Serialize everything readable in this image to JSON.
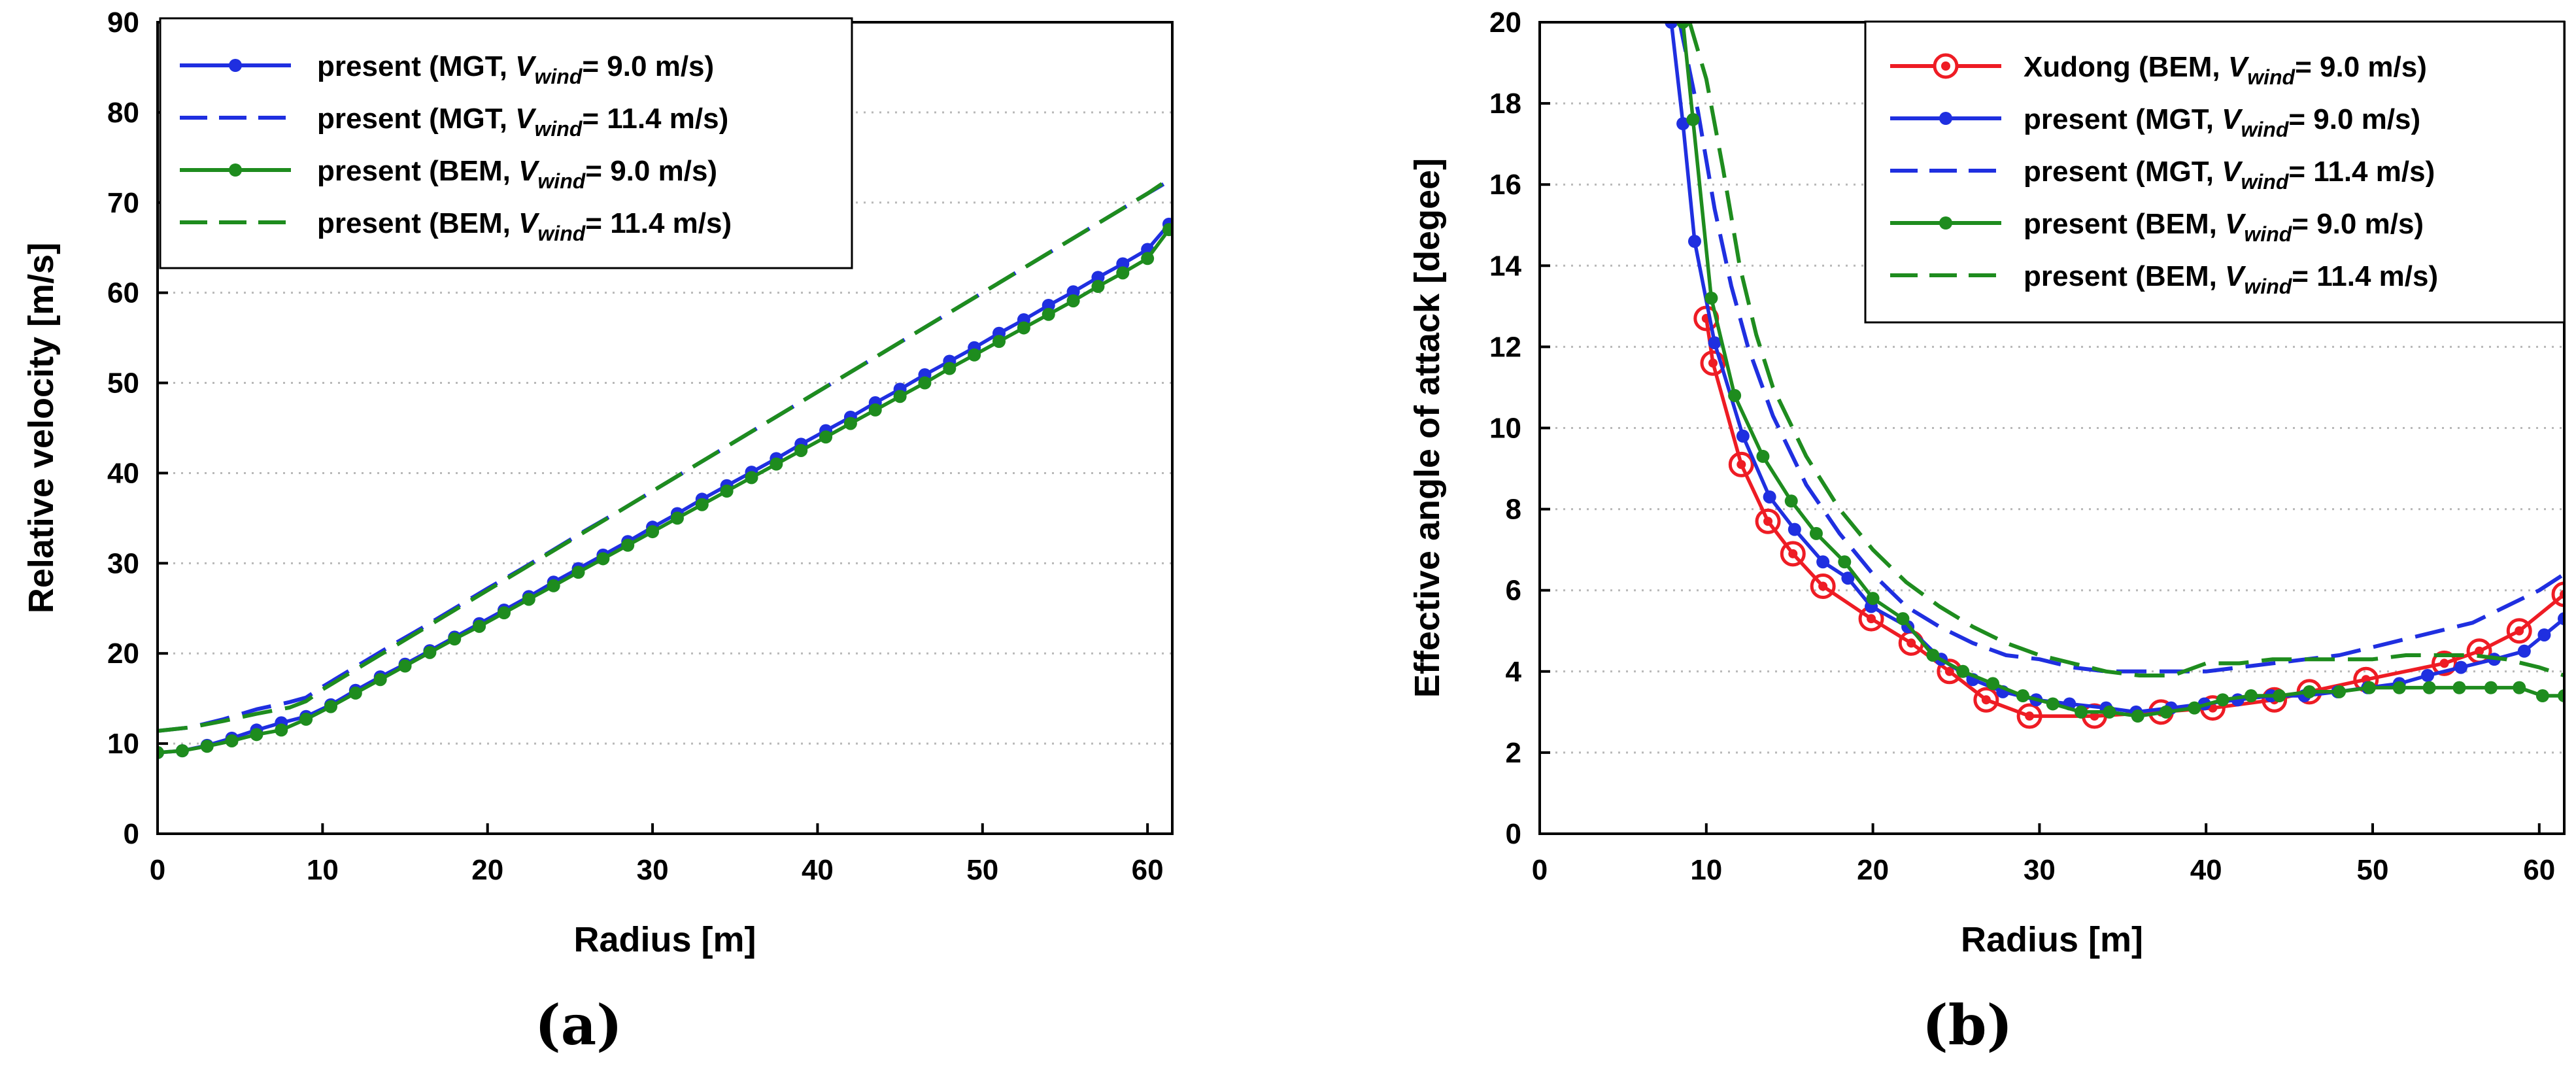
{
  "figure": {
    "colors": {
      "red": "#ee1c24",
      "blue": "#1f2fe0",
      "green": "#1e8c1e",
      "grid": "#b8b8b8"
    }
  },
  "chart_data": [
    {
      "id": "a",
      "panel_label": "(a)",
      "type": "line",
      "title": "",
      "xlabel": "Radius [m]",
      "ylabel": "Relative velocity [m/s]",
      "xlim": [
        0,
        61.5
      ],
      "ylim": [
        0,
        90
      ],
      "xticks": [
        0,
        10,
        20,
        30,
        40,
        50,
        60
      ],
      "yticks": [
        0,
        10,
        20,
        30,
        40,
        50,
        60,
        70,
        80,
        90
      ],
      "grid": "horizontal dotted",
      "legend_position": "top-left",
      "series": [
        {
          "name_pre": "present (MGT, ",
          "name_var": "V",
          "name_sub": "wind",
          "name_post": "= 9.0 m/s)",
          "color": "#1f2fe0",
          "style": "solid",
          "marker": "dot",
          "x": [
            0,
            1.5,
            3.0,
            4.5,
            6.0,
            7.5,
            9.0,
            10.5,
            12.0,
            13.5,
            15.0,
            16.5,
            18.0,
            19.5,
            21.0,
            22.5,
            24.0,
            25.5,
            27.0,
            28.5,
            30.0,
            31.5,
            33.0,
            34.5,
            36.0,
            37.5,
            39.0,
            40.5,
            42.0,
            43.5,
            45.0,
            46.5,
            48.0,
            49.5,
            51.0,
            52.5,
            54.0,
            55.5,
            57.0,
            58.5,
            60.0,
            61.3
          ],
          "y": [
            9.0,
            9.2,
            9.8,
            10.6,
            11.5,
            12.3,
            13.0,
            14.3,
            15.9,
            17.4,
            18.8,
            20.3,
            21.8,
            23.3,
            24.8,
            26.3,
            27.9,
            29.4,
            30.9,
            32.4,
            34.0,
            35.5,
            37.1,
            38.6,
            40.1,
            41.6,
            43.2,
            44.7,
            46.2,
            47.8,
            49.3,
            50.9,
            52.4,
            53.9,
            55.5,
            57.0,
            58.6,
            60.1,
            61.7,
            63.2,
            64.8,
            67.6
          ]
        },
        {
          "name_pre": "present (MGT, ",
          "name_var": "V",
          "name_sub": "wind",
          "name_post": "= 11.4 m/s)",
          "color": "#1f2fe0",
          "style": "dashed",
          "marker": "none",
          "x": [
            0,
            2,
            4,
            6,
            8,
            9,
            10,
            12,
            14,
            16,
            18,
            20,
            22,
            24,
            26,
            28,
            30,
            32,
            34,
            36,
            38,
            40,
            42,
            44,
            46,
            48,
            50,
            52,
            54,
            56,
            58,
            60,
            61.3
          ],
          "y": [
            11.4,
            11.8,
            12.7,
            13.8,
            14.6,
            15.1,
            16.3,
            18.5,
            20.7,
            22.8,
            25.0,
            27.2,
            29.3,
            31.5,
            33.7,
            35.8,
            38.0,
            40.2,
            42.4,
            44.6,
            46.8,
            49.0,
            51.2,
            53.4,
            55.6,
            57.8,
            60.0,
            62.2,
            64.4,
            66.6,
            68.8,
            71.0,
            72.4
          ]
        },
        {
          "name_pre": "present (BEM, ",
          "name_var": "V",
          "name_sub": "wind",
          "name_post": "= 9.0 m/s)",
          "color": "#1e8c1e",
          "style": "solid",
          "marker": "dot",
          "x": [
            0,
            1.5,
            3.0,
            4.5,
            6.0,
            7.5,
            9.0,
            10.5,
            12.0,
            13.5,
            15.0,
            16.5,
            18.0,
            19.5,
            21.0,
            22.5,
            24.0,
            25.5,
            27.0,
            28.5,
            30.0,
            31.5,
            33.0,
            34.5,
            36.0,
            37.5,
            39.0,
            40.5,
            42.0,
            43.5,
            45.0,
            46.5,
            48.0,
            49.5,
            51.0,
            52.5,
            54.0,
            55.5,
            57.0,
            58.5,
            60.0,
            61.3
          ],
          "y": [
            9.0,
            9.2,
            9.7,
            10.3,
            11.0,
            11.5,
            12.7,
            14.1,
            15.6,
            17.1,
            18.6,
            20.1,
            21.6,
            23.0,
            24.5,
            26.0,
            27.5,
            29.0,
            30.5,
            32.0,
            33.5,
            35.0,
            36.5,
            38.0,
            39.5,
            41.0,
            42.5,
            44.0,
            45.5,
            47.0,
            48.5,
            50.0,
            51.6,
            53.1,
            54.6,
            56.1,
            57.6,
            59.1,
            60.7,
            62.2,
            63.8,
            67.0
          ]
        },
        {
          "name_pre": "present (BEM, ",
          "name_var": "V",
          "name_sub": "wind",
          "name_post": "= 11.4 m/s)",
          "color": "#1e8c1e",
          "style": "dashed",
          "marker": "none",
          "x": [
            0,
            2,
            4,
            6,
            8,
            9,
            10,
            12,
            14,
            16,
            18,
            20,
            22,
            24,
            26,
            28,
            30,
            32,
            34,
            36,
            38,
            40,
            42,
            44,
            46,
            48,
            50,
            52,
            54,
            56,
            58,
            60,
            61.3
          ],
          "y": [
            11.4,
            11.8,
            12.5,
            13.3,
            14.0,
            14.7,
            16.0,
            18.2,
            20.4,
            22.6,
            24.8,
            27.0,
            29.2,
            31.4,
            33.6,
            35.8,
            38.0,
            40.2,
            42.4,
            44.6,
            46.8,
            49.0,
            51.2,
            53.4,
            55.6,
            57.8,
            60.0,
            62.2,
            64.4,
            66.6,
            68.8,
            71.0,
            72.6
          ]
        }
      ]
    },
    {
      "id": "b",
      "panel_label": "(b)",
      "type": "line",
      "title": "",
      "xlabel": "Radius [m]",
      "ylabel": "Effective angle of attack [degee]",
      "xlim": [
        0,
        61.5
      ],
      "ylim": [
        0,
        20
      ],
      "xticks": [
        0,
        10,
        20,
        30,
        40,
        50,
        60
      ],
      "yticks": [
        0,
        2,
        4,
        6,
        8,
        10,
        12,
        14,
        16,
        18,
        20
      ],
      "grid": "horizontal dotted",
      "legend_position": "top-right",
      "series": [
        {
          "name_pre": "Xudong (BEM, ",
          "name_var": "V",
          "name_sub": "wind",
          "name_post": "= 9.0 m/s)",
          "color": "#ee1c24",
          "style": "solid",
          "marker": "ring",
          "x": [
            10.0,
            10.4,
            12.1,
            13.7,
            15.2,
            17.0,
            19.9,
            22.3,
            24.6,
            26.8,
            29.4,
            33.3,
            37.3,
            40.4,
            44.1,
            46.2,
            49.6,
            54.3,
            56.4,
            58.8,
            61.5
          ],
          "y": [
            12.7,
            11.6,
            9.1,
            7.7,
            6.9,
            6.1,
            5.3,
            4.7,
            4.0,
            3.3,
            2.9,
            2.9,
            3.0,
            3.1,
            3.3,
            3.5,
            3.8,
            4.2,
            4.5,
            5.0,
            5.9
          ]
        },
        {
          "name_pre": "present (MGT, ",
          "name_var": "V",
          "name_sub": "wind",
          "name_post": "= 9.0 m/s)",
          "color": "#1f2fe0",
          "style": "solid",
          "marker": "dot",
          "x": [
            7.9,
            8.6,
            9.3,
            10.5,
            12.2,
            13.8,
            15.3,
            17.0,
            18.5,
            19.9,
            22.1,
            24.1,
            26.0,
            27.8,
            29.8,
            31.8,
            34.0,
            35.8,
            37.9,
            39.9,
            41.9,
            43.9,
            45.9,
            47.9,
            49.7,
            51.6,
            53.3,
            55.3,
            57.3,
            59.1,
            60.3,
            61.5
          ],
          "y": [
            20.0,
            17.5,
            14.6,
            12.1,
            9.8,
            8.3,
            7.5,
            6.7,
            6.3,
            5.6,
            5.1,
            4.3,
            3.8,
            3.5,
            3.3,
            3.2,
            3.1,
            3.0,
            3.1,
            3.2,
            3.3,
            3.4,
            3.4,
            3.5,
            3.6,
            3.7,
            3.9,
            4.1,
            4.3,
            4.5,
            4.9,
            5.3
          ]
        },
        {
          "name_pre": "present (MGT, ",
          "name_var": "V",
          "name_sub": "wind",
          "name_post": "= 11.4 m/s)",
          "color": "#1f2fe0",
          "style": "dashed",
          "marker": "none",
          "x": [
            8.4,
            9.5,
            10.5,
            11.5,
            12.5,
            14,
            16,
            18,
            20,
            22,
            24,
            26,
            28,
            30,
            32,
            34,
            36,
            38,
            40,
            42,
            44,
            46,
            48,
            50,
            52,
            54,
            56,
            58,
            60,
            61.5
          ],
          "y": [
            20.0,
            17.8,
            15.4,
            13.5,
            12.0,
            10.3,
            8.6,
            7.4,
            6.4,
            5.6,
            5.1,
            4.7,
            4.4,
            4.3,
            4.1,
            4.0,
            4.0,
            4.0,
            4.0,
            4.1,
            4.2,
            4.3,
            4.4,
            4.6,
            4.8,
            5.0,
            5.2,
            5.6,
            6.0,
            6.4
          ]
        },
        {
          "name_pre": "present (BEM, ",
          "name_var": "V",
          "name_sub": "wind",
          "name_post": "= 9.0 m/s)",
          "color": "#1e8c1e",
          "style": "solid",
          "marker": "dot",
          "x": [
            8.6,
            9.2,
            10.3,
            11.7,
            13.4,
            15.1,
            16.6,
            18.3,
            20.0,
            21.8,
            23.6,
            25.4,
            27.2,
            29.0,
            30.8,
            32.5,
            34.2,
            35.9,
            37.6,
            39.3,
            41.0,
            42.7,
            44.4,
            46.2,
            48.0,
            49.8,
            51.6,
            53.4,
            55.2,
            57.1,
            58.8,
            60.2,
            61.5
          ],
          "y": [
            20.0,
            17.6,
            13.2,
            10.8,
            9.3,
            8.2,
            7.4,
            6.7,
            5.8,
            5.3,
            4.4,
            4.0,
            3.7,
            3.4,
            3.2,
            3.0,
            3.0,
            2.9,
            3.0,
            3.1,
            3.3,
            3.4,
            3.4,
            3.5,
            3.5,
            3.6,
            3.6,
            3.6,
            3.6,
            3.6,
            3.6,
            3.4,
            3.4
          ]
        },
        {
          "name_pre": "present (BEM, ",
          "name_var": "V",
          "name_sub": "wind",
          "name_post": "= 11.4 m/s)",
          "color": "#1e8c1e",
          "style": "dashed",
          "marker": "none",
          "x": [
            9.0,
            10,
            11,
            12,
            13,
            14,
            16,
            18,
            20,
            22,
            24,
            26,
            28,
            30,
            32,
            34,
            36,
            38,
            40,
            42,
            44,
            46,
            48,
            50,
            52,
            54,
            56,
            58,
            60,
            61.5
          ],
          "y": [
            20.0,
            18.6,
            16.4,
            14.0,
            12.3,
            11.0,
            9.3,
            8.0,
            7.0,
            6.2,
            5.6,
            5.1,
            4.7,
            4.4,
            4.2,
            4.0,
            3.9,
            3.9,
            4.2,
            4.2,
            4.3,
            4.3,
            4.3,
            4.3,
            4.4,
            4.4,
            4.4,
            4.3,
            4.1,
            3.9
          ]
        }
      ]
    }
  ]
}
